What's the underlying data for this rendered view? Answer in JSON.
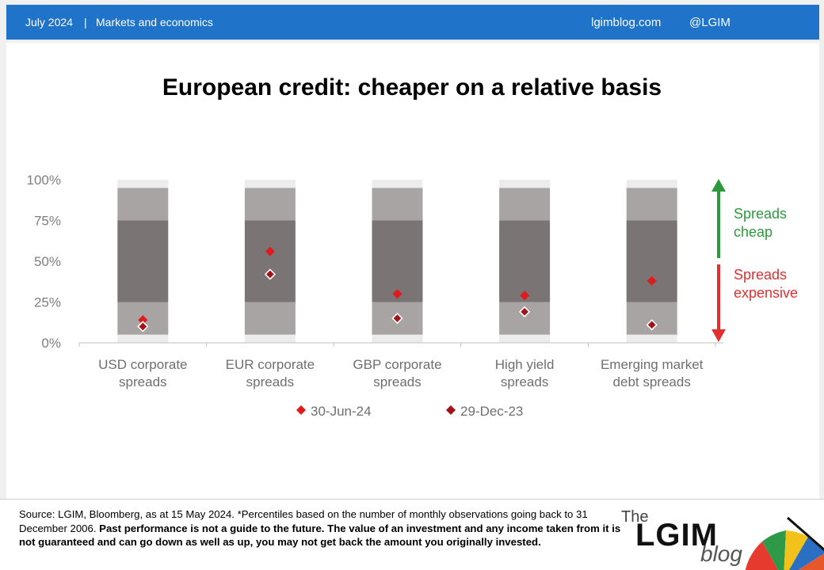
{
  "header": {
    "date": "July 2024",
    "separator": "|",
    "category": "Markets and economics",
    "site": "lgimblog.com",
    "handle": "@LGIM"
  },
  "title": "European credit: cheaper on a relative basis",
  "chart_data": {
    "type": "scatter",
    "title": "European credit: cheaper on a relative basis",
    "categories": [
      [
        "USD corporate",
        "spreads"
      ],
      [
        "EUR corporate",
        "spreads"
      ],
      [
        "GBP corporate",
        "spreads"
      ],
      [
        "High yield",
        "spreads"
      ],
      [
        "Emerging market",
        "debt spreads"
      ]
    ],
    "y_ticks": [
      "100%",
      "75%",
      "50%",
      "25%",
      "0%"
    ],
    "ylim": [
      0,
      100
    ],
    "percentile_bands": [
      {
        "from": 0,
        "to": 5,
        "color": "#ececec"
      },
      {
        "from": 5,
        "to": 25,
        "color": "#a9a4a4"
      },
      {
        "from": 25,
        "to": 75,
        "color": "#7a7474"
      },
      {
        "from": 75,
        "to": 95,
        "color": "#a9a4a4"
      },
      {
        "from": 95,
        "to": 100,
        "color": "#ececec"
      }
    ],
    "series": [
      {
        "name": "30-Jun-24",
        "color": "#e01b1b",
        "values": [
          14,
          56,
          30,
          29,
          38
        ]
      },
      {
        "name": "29-Dec-23",
        "color": "#a01418",
        "values": [
          10,
          42,
          15,
          19,
          11
        ]
      }
    ],
    "annotations": {
      "cheap": {
        "lines": [
          "Spreads",
          "cheap"
        ],
        "color": "#2c9a3c"
      },
      "expensive": {
        "lines": [
          "Spreads",
          "expensive"
        ],
        "color": "#e03030"
      }
    },
    "legend_position": "bottom"
  },
  "footer": {
    "source": "Source: LGIM,  Bloomberg, as at 15 May 2024. *Percentiles based on the number of monthly observations going back to 31 December 2006.",
    "disclaimer": "Past performance is not a guide to the future. The value of an investment and any income taken from it is not guaranteed and can go down as well as up, you may  not get back the amount you originally invested."
  },
  "logo": {
    "the": "The",
    "main": "LGIM",
    "blog": "blog"
  }
}
